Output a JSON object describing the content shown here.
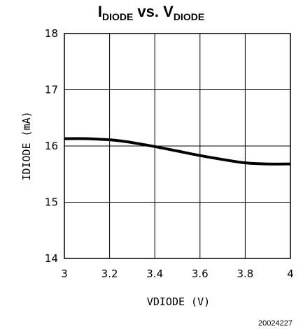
{
  "chart_data": {
    "type": "line",
    "title": {
      "part1_main": "I",
      "part1_sub": "DIODE",
      "middle": " vs. ",
      "part2_main": "V",
      "part2_sub": "DIODE"
    },
    "xlabel": "VDIODE (V)",
    "ylabel": "IDIODE (mA)",
    "xlim": [
      3,
      4
    ],
    "ylim": [
      14,
      18
    ],
    "x_ticks": [
      3,
      3.2,
      3.4,
      3.6,
      3.8,
      4
    ],
    "x_tick_labels": [
      "3",
      "3.2",
      "3.4",
      "3.6",
      "3.8",
      "4"
    ],
    "y_ticks": [
      14,
      15,
      16,
      17,
      18
    ],
    "y_tick_labels": [
      "14",
      "15",
      "16",
      "17",
      "18"
    ],
    "grid": true,
    "series": [
      {
        "x": [
          3.0,
          3.1,
          3.2,
          3.25,
          3.3,
          3.4,
          3.5,
          3.6,
          3.7,
          3.8,
          3.9,
          4.0
        ],
        "y": [
          16.13,
          16.13,
          16.11,
          16.09,
          16.06,
          15.99,
          15.91,
          15.83,
          15.76,
          15.7,
          15.68,
          15.68
        ],
        "color": "#000000"
      }
    ],
    "figure_id": "20024227"
  }
}
